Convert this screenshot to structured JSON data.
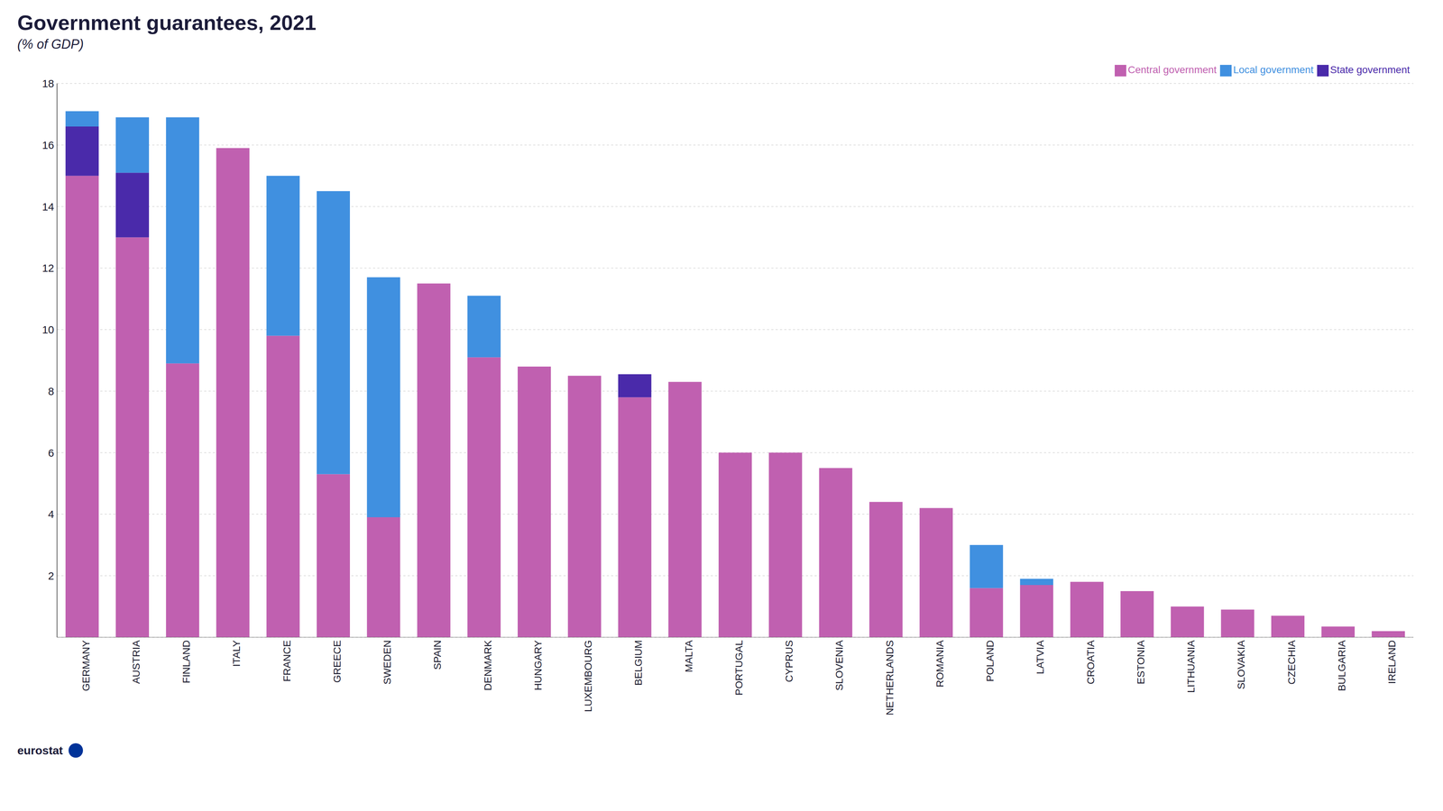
{
  "chart_data": {
    "type": "bar",
    "title": "Government guarantees, 2021",
    "subtitle": "(% of GDP)",
    "annotations": [
      "eurostat"
    ],
    "categories": [
      "GERMANY",
      "AUSTRIA",
      "FINLAND",
      "ITALY",
      "FRANCE",
      "GREECE",
      "SWEDEN",
      "SPAIN",
      "DENMARK",
      "HUNGARY",
      "LUXEMBOURG",
      "BELGIUM",
      "MALTA",
      "PORTUGAL",
      "CYPRUS",
      "SLOVENIA",
      "NETHERLANDS",
      "ROMANIA",
      "POLAND",
      "LATVIA",
      "CROATIA",
      "ESTONIA",
      "LITHUANIA",
      "SLOVAKIA",
      "CZECHIA",
      "BULGARIA",
      "IRELAND"
    ],
    "series": [
      {
        "name": "Central government",
        "color": "#c060b0",
        "values": [
          15.0,
          13.0,
          8.9,
          15.9,
          9.8,
          5.3,
          3.9,
          11.5,
          9.1,
          8.8,
          8.5,
          7.8,
          8.3,
          6.0,
          6.0,
          5.5,
          4.4,
          4.2,
          1.6,
          1.7,
          1.8,
          1.5,
          1.0,
          0.9,
          0.7,
          0.35,
          0.2
        ]
      },
      {
        "name": "State government",
        "color": "#4a2aaa",
        "values": [
          1.6,
          2.1,
          0.0,
          0.0,
          0.0,
          0.0,
          0.0,
          0.0,
          0.0,
          0.0,
          0.0,
          0.75,
          0.0,
          0.0,
          0.0,
          0.0,
          0.0,
          0.0,
          0.0,
          0.0,
          0.0,
          0.0,
          0.0,
          0.0,
          0.0,
          0.0,
          0.0
        ]
      },
      {
        "name": "Local government",
        "color": "#4090e0",
        "values": [
          0.5,
          1.8,
          8.0,
          0.0,
          5.2,
          9.2,
          7.8,
          0.0,
          2.0,
          0.0,
          0.0,
          0.0,
          0.0,
          0.0,
          0.0,
          0.0,
          0.0,
          0.0,
          1.4,
          0.2,
          0.0,
          0.0,
          0.0,
          0.0,
          0.0,
          0.0,
          0.0
        ]
      }
    ],
    "stacked": true,
    "ylim": [
      0,
      18
    ],
    "yticks": [
      2,
      4,
      6,
      8,
      10,
      12,
      14,
      16,
      18
    ],
    "grid": true,
    "legend": "upper right"
  }
}
